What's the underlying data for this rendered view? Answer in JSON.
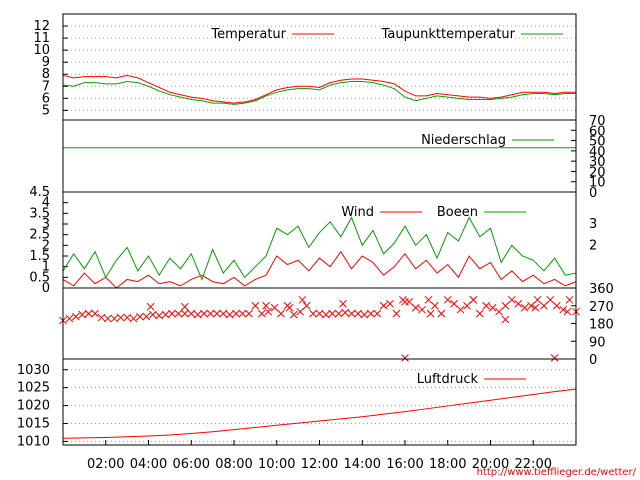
{
  "url": "http://www.tiefflieger.de/wetter/",
  "colors": {
    "red": "#ff0000",
    "green": "#00a000",
    "grid": "#a0a0a0"
  },
  "chart_data": [
    {
      "type": "line",
      "legend": [
        "Temperatur",
        "Taupunkttemperatur"
      ],
      "ylim": [
        4.2,
        13
      ],
      "yticks": [
        5,
        6,
        7,
        8,
        9,
        10,
        11,
        12
      ],
      "grid": true,
      "legend_position": "top-right",
      "x": [
        0,
        0.5,
        1,
        1.5,
        2,
        2.5,
        3,
        3.5,
        4,
        4.5,
        5,
        5.5,
        6,
        6.5,
        7,
        7.5,
        8,
        8.5,
        9,
        9.5,
        10,
        10.5,
        11,
        11.5,
        12,
        12.5,
        13,
        13.5,
        14,
        14.5,
        15,
        15.5,
        16,
        16.5,
        17,
        17.5,
        18,
        18.5,
        19,
        19.5,
        20,
        20.5,
        21,
        21.5,
        22,
        22.5,
        23,
        23.5,
        24
      ],
      "series": [
        {
          "name": "Temperatur",
          "color": "#ff0000",
          "values": [
            7.9,
            7.7,
            7.8,
            7.8,
            7.8,
            7.7,
            7.9,
            7.7,
            7.3,
            6.9,
            6.5,
            6.3,
            6.1,
            6.0,
            5.8,
            5.7,
            5.6,
            5.7,
            5.9,
            6.3,
            6.7,
            6.9,
            7.0,
            7.0,
            6.9,
            7.3,
            7.5,
            7.6,
            7.6,
            7.5,
            7.4,
            7.2,
            6.6,
            6.2,
            6.2,
            6.4,
            6.3,
            6.2,
            6.1,
            6.1,
            6.0,
            6.1,
            6.3,
            6.5,
            6.5,
            6.5,
            6.4,
            6.5,
            6.5
          ]
        },
        {
          "name": "Taupunkttemperatur",
          "color": "#00a000",
          "values": [
            7.1,
            7.0,
            7.3,
            7.3,
            7.2,
            7.2,
            7.4,
            7.3,
            7.0,
            6.6,
            6.3,
            6.1,
            5.9,
            5.8,
            5.6,
            5.6,
            5.5,
            5.6,
            5.8,
            6.2,
            6.5,
            6.7,
            6.8,
            6.8,
            6.7,
            7.1,
            7.3,
            7.4,
            7.4,
            7.3,
            7.1,
            6.8,
            6.1,
            5.8,
            6.0,
            6.2,
            6.1,
            6.0,
            5.9,
            5.9,
            5.9,
            6.0,
            6.1,
            6.3,
            6.4,
            6.4,
            6.3,
            6.4,
            6.4
          ]
        }
      ]
    },
    {
      "type": "line",
      "legend": [
        "Niederschlag"
      ],
      "ylim": [
        0,
        70
      ],
      "yticks": [
        0,
        10,
        20,
        30,
        40,
        50,
        60,
        70
      ],
      "grid": false,
      "legend_position": "top-right",
      "x": [
        0,
        24
      ],
      "series": [
        {
          "name": "Niederschlag",
          "color": "#00a000",
          "values": [
            43,
            43
          ]
        }
      ]
    },
    {
      "type": "line",
      "legend": [
        "Wind",
        "Boeen"
      ],
      "ylim": [
        0,
        4.5
      ],
      "yticks": [
        0,
        0.5,
        1,
        1.5,
        2,
        2.5,
        3,
        3.5,
        4,
        4.5
      ],
      "right_ticks": [
        2,
        3
      ],
      "grid": false,
      "legend_position": "top-right",
      "x": [
        0,
        0.5,
        1,
        1.5,
        2,
        2.5,
        3,
        3.5,
        4,
        4.5,
        5,
        5.5,
        6,
        6.5,
        7,
        7.5,
        8,
        8.5,
        9,
        9.5,
        10,
        10.5,
        11,
        11.5,
        12,
        12.5,
        13,
        13.5,
        14,
        14.5,
        15,
        15.5,
        16,
        16.5,
        17,
        17.5,
        18,
        18.5,
        19,
        19.5,
        20,
        20.5,
        21,
        21.5,
        22,
        22.5,
        23,
        23.5,
        24
      ],
      "series": [
        {
          "name": "Wind",
          "color": "#ff0000",
          "values": [
            0.4,
            0.1,
            0.7,
            0.2,
            0.5,
            0.0,
            0.4,
            0.3,
            0.6,
            0.2,
            0.3,
            0.1,
            0.4,
            0.6,
            0.3,
            0.2,
            0.5,
            0.1,
            0.4,
            0.6,
            1.5,
            1.1,
            1.3,
            0.8,
            1.4,
            1.0,
            1.7,
            0.9,
            1.5,
            1.2,
            0.6,
            1.0,
            1.6,
            0.9,
            1.3,
            0.7,
            1.1,
            0.5,
            1.5,
            0.9,
            1.2,
            0.4,
            0.8,
            0.3,
            0.6,
            0.2,
            0.4,
            0.1,
            0.3
          ]
        },
        {
          "name": "Boeen",
          "color": "#00a000",
          "values": [
            0.8,
            1.6,
            0.9,
            1.7,
            0.5,
            1.3,
            1.9,
            0.8,
            1.5,
            0.6,
            1.4,
            0.9,
            1.6,
            0.4,
            1.8,
            0.7,
            1.3,
            0.5,
            1.0,
            1.5,
            2.8,
            2.5,
            2.9,
            1.9,
            2.6,
            3.1,
            2.4,
            3.3,
            2.0,
            2.7,
            1.6,
            2.1,
            2.9,
            2.0,
            2.5,
            1.4,
            2.6,
            2.2,
            3.3,
            2.4,
            2.8,
            1.2,
            2.0,
            1.5,
            1.3,
            0.8,
            1.4,
            0.6,
            0.7
          ]
        }
      ]
    },
    {
      "type": "scatter",
      "ylim": [
        0,
        360
      ],
      "yticks": [
        0,
        90,
        180,
        270,
        360
      ],
      "grid": false,
      "x": [
        0,
        0.3,
        0.6,
        0.9,
        1.2,
        1.5,
        1.8,
        2.1,
        2.4,
        2.7,
        3.0,
        3.3,
        3.6,
        3.9,
        4.2,
        4.5,
        4.8,
        5.1,
        5.4,
        5.7,
        6.0,
        6.3,
        6.6,
        6.9,
        7.2,
        7.5,
        7.8,
        8.1,
        8.4,
        8.7,
        9.0,
        9.3,
        9.6,
        9.9,
        10.2,
        10.5,
        10.8,
        11.1,
        11.4,
        11.7,
        12.0,
        12.3,
        12.6,
        12.9,
        13.2,
        13.5,
        13.8,
        14.1,
        14.4,
        14.7,
        15.0,
        15.3,
        15.6,
        15.9,
        16.2,
        16.5,
        16.8,
        17.1,
        17.4,
        17.7,
        18.0,
        18.3,
        18.6,
        18.9,
        19.2,
        19.5,
        19.8,
        20.1,
        20.4,
        20.7,
        21.0,
        21.3,
        21.6,
        21.9,
        22.2,
        22.5,
        22.8,
        23.1,
        23.4,
        23.7,
        24.0,
        4.1,
        5.7,
        9.5,
        10.6,
        11.2,
        13.1,
        16.0,
        17.2,
        19.2,
        20.7,
        22.1,
        23.6,
        16.0,
        23.0
      ],
      "series": [
        {
          "name": "",
          "color": "#ff0000",
          "values": [
            195,
            205,
            215,
            225,
            230,
            230,
            210,
            205,
            205,
            210,
            210,
            205,
            215,
            215,
            225,
            220,
            225,
            230,
            230,
            230,
            230,
            225,
            230,
            230,
            230,
            230,
            225,
            230,
            230,
            230,
            270,
            230,
            240,
            260,
            230,
            270,
            225,
            240,
            270,
            230,
            230,
            225,
            230,
            230,
            235,
            230,
            230,
            225,
            230,
            230,
            270,
            280,
            230,
            300,
            290,
            260,
            250,
            300,
            270,
            230,
            300,
            280,
            250,
            270,
            300,
            230,
            270,
            260,
            240,
            270,
            300,
            280,
            260,
            270,
            300,
            270,
            300,
            270,
            250,
            300,
            240,
            265,
            265,
            270,
            260,
            300,
            280,
            290,
            230,
            300,
            200,
            260,
            240,
            5,
            5
          ]
        }
      ]
    },
    {
      "type": "line",
      "legend": [
        "Luftdruck"
      ],
      "ylim": [
        1009,
        1033
      ],
      "yticks": [
        1010,
        1015,
        1020,
        1025,
        1030
      ],
      "grid": true,
      "legend_position": "top-right",
      "xticks": [
        "02:00",
        "04:00",
        "06:00",
        "08:00",
        "10:00",
        "12:00",
        "14:00",
        "16:00",
        "18:00",
        "20:00",
        "22:00"
      ],
      "x": [
        0,
        1,
        2,
        3,
        4,
        5,
        6,
        7,
        8,
        9,
        10,
        11,
        12,
        13,
        14,
        15,
        16,
        17,
        18,
        19,
        20,
        21,
        22,
        23,
        24
      ],
      "series": [
        {
          "name": "Luftdruck",
          "color": "#ff0000",
          "values": [
            1010.9,
            1011.0,
            1011.1,
            1011.3,
            1011.5,
            1011.8,
            1012.2,
            1012.7,
            1013.3,
            1013.9,
            1014.5,
            1015.1,
            1015.7,
            1016.3,
            1016.9,
            1017.6,
            1018.3,
            1019.1,
            1019.9,
            1020.7,
            1021.5,
            1022.3,
            1023.1,
            1023.9,
            1024.6
          ]
        }
      ]
    }
  ]
}
